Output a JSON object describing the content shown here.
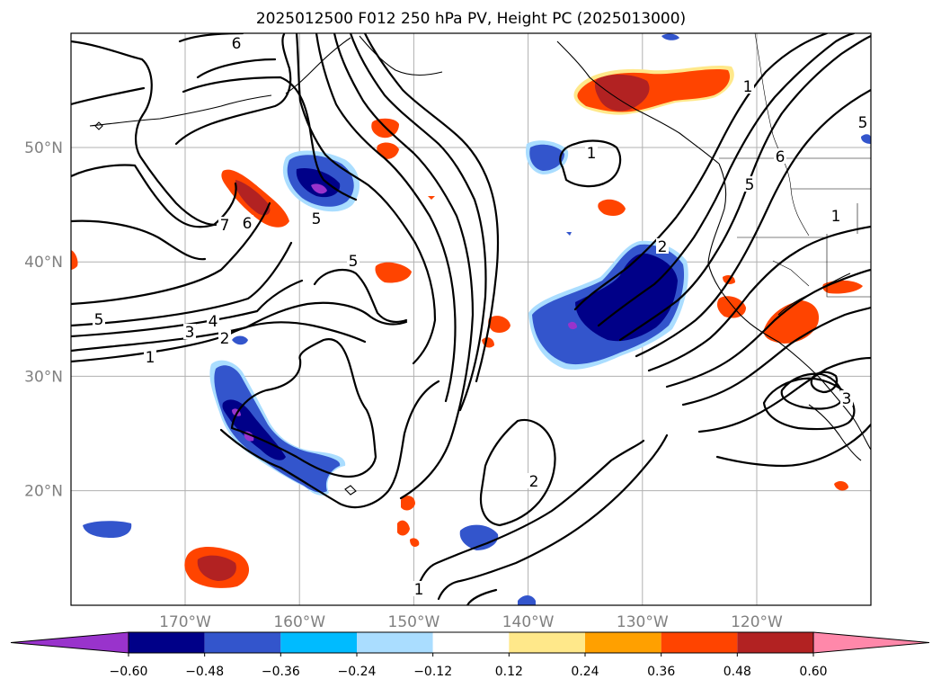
{
  "figure": {
    "title": "2025012500 F012 250 hPa PV, Height PC (2025013000)"
  },
  "map": {
    "lat_ticks": [
      {
        "value": 50,
        "label": "50°N"
      },
      {
        "value": 40,
        "label": "40°N"
      },
      {
        "value": 30,
        "label": "30°N"
      },
      {
        "value": 20,
        "label": "20°N"
      }
    ],
    "lon_ticks": [
      {
        "value": -170,
        "label": "170°W"
      },
      {
        "value": -160,
        "label": "160°W"
      },
      {
        "value": -150,
        "label": "150°W"
      },
      {
        "value": -140,
        "label": "140°W"
      },
      {
        "value": -130,
        "label": "130°W"
      },
      {
        "value": -120,
        "label": "120°W"
      }
    ],
    "gridlines": true,
    "contour_labels": [
      "6",
      "7",
      "6",
      "5",
      "5",
      "4",
      "3",
      "2",
      "1",
      "5",
      "1",
      "2",
      "1",
      "5",
      "6",
      "1",
      "2",
      "3",
      "1",
      "5"
    ]
  },
  "colorbar": {
    "extend": "both",
    "boundaries": [
      -0.72,
      -0.6,
      -0.48,
      -0.36,
      -0.24,
      -0.12,
      0.12,
      0.24,
      0.36,
      0.48,
      0.6,
      0.72
    ],
    "colors": [
      "#9933cc",
      "#000088",
      "#3355cc",
      "#00bbff",
      "#aaddff",
      "#ffffff",
      "#ffe88a",
      "#ffa000",
      "#ff4400",
      "#b22222",
      "#ff88aa"
    ],
    "tick_labels": [
      "−0.60",
      "−0.48",
      "−0.36",
      "−0.24",
      "−0.12",
      "0.12",
      "0.24",
      "0.36",
      "0.48",
      "0.60"
    ]
  }
}
